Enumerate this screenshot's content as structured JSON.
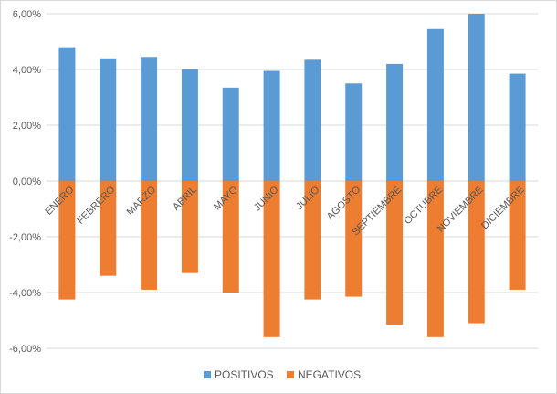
{
  "chart_data": {
    "type": "bar",
    "categories": [
      "ENERO",
      "FEBRERO",
      "MARZO",
      "ABRIL",
      "MAYO",
      "JUNIO",
      "JULIO",
      "AGOSTO",
      "SEPTIEMBRE",
      "OCTUBRE",
      "NOVIEMBRE",
      "DICIEMBRE"
    ],
    "series": [
      {
        "name": "POSITIVOS",
        "color": "#5B9BD5",
        "values": [
          4.8,
          4.4,
          4.45,
          4.0,
          3.35,
          3.95,
          4.35,
          3.5,
          4.2,
          5.45,
          6.0,
          3.85
        ]
      },
      {
        "name": "NEGATIVOS",
        "color": "#ED7D31",
        "values": [
          -4.25,
          -3.4,
          -3.9,
          -3.3,
          -4.0,
          -5.6,
          -4.25,
          -4.15,
          -5.15,
          -5.6,
          -5.1,
          -3.9
        ]
      }
    ],
    "yticks": [
      "6,00%",
      "4,00%",
      "2,00%",
      "0,00%",
      "-2,00%",
      "-4,00%",
      "-6,00%"
    ],
    "ylim": [
      -6,
      6
    ],
    "grid": true,
    "legend_position": "bottom",
    "title": "",
    "xlabel": "",
    "ylabel": ""
  }
}
